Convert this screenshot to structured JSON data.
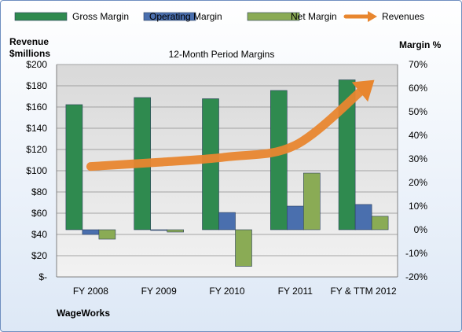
{
  "chart_data": {
    "type": "bar",
    "title": "12-Month Period Margins",
    "y_left_label": [
      "Revenue",
      "$millions"
    ],
    "y_right_label": "Margin %",
    "y_left_ticks": [
      "$-",
      "$20",
      "$40",
      "$60",
      "$80",
      "$100",
      "$120",
      "$140",
      "$160",
      "$180",
      "$200"
    ],
    "y_right_ticks": [
      "-20%",
      "-10%",
      "0%",
      "10%",
      "20%",
      "30%",
      "40%",
      "50%",
      "60%",
      "70%"
    ],
    "ylim_left": [
      0,
      200
    ],
    "ylim_right": [
      -20,
      70
    ],
    "categories": [
      "FY 2008",
      "FY 2009",
      "FY 2010",
      "FY 2011",
      "FY & TTM 2012"
    ],
    "series": [
      {
        "name": "Gross Margin",
        "axis": "right",
        "color": "#2f8a4f",
        "values": [
          53,
          56,
          55.5,
          59,
          63.5
        ]
      },
      {
        "name": "Operating Margin",
        "axis": "right",
        "color": "#4a6fae",
        "values": [
          -2,
          -0.3,
          7.3,
          10,
          10.7
        ]
      },
      {
        "name": "Net Margin",
        "axis": "right",
        "color": "#8aab55",
        "values": [
          -4,
          -1,
          -15.5,
          24,
          5.7
        ]
      }
    ],
    "revenue_arrow": {
      "name": "Revenues",
      "axis": "left",
      "color": "#e8862f",
      "values": [
        104,
        108,
        113,
        124,
        177
      ]
    },
    "grid": true,
    "legend_position": "top",
    "footer_label": "WageWorks"
  }
}
